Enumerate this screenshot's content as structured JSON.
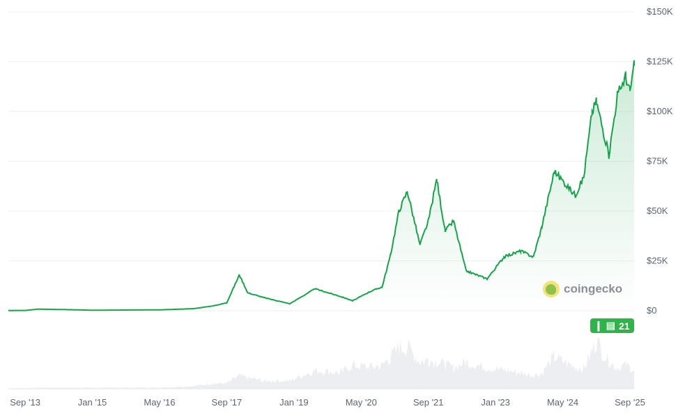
{
  "chart_data": {
    "type": "area",
    "xlabel": "",
    "ylabel": "",
    "y_ticks": [
      "$0",
      "$25K",
      "$50K",
      "$75K",
      "$100K",
      "$125K",
      "$150K"
    ],
    "y_tick_values": [
      0,
      25000,
      50000,
      75000,
      100000,
      125000,
      150000
    ],
    "ylim": [
      0,
      150000
    ],
    "x_ticks": [
      "Sep '13",
      "Jan '15",
      "May '16",
      "Sep '17",
      "Jan '19",
      "May '20",
      "Sep '21",
      "Jan '23",
      "May '24",
      "Sep '25"
    ],
    "x_tick_dates": [
      "2013-09",
      "2015-01",
      "2016-05",
      "2017-09",
      "2019-01",
      "2020-05",
      "2021-09",
      "2023-01",
      "2024-05",
      "2025-09"
    ],
    "xlim": [
      "2013-05",
      "2025-10"
    ],
    "grid": true,
    "line_color": "#16a34a",
    "series": [
      {
        "x": [
          "2013-05",
          "2013-09",
          "2013-12",
          "2014-06",
          "2015-01",
          "2016-01",
          "2016-05",
          "2017-01",
          "2017-06",
          "2017-09",
          "2017-12",
          "2018-02",
          "2018-06",
          "2018-12",
          "2019-06",
          "2019-12",
          "2020-03",
          "2020-07",
          "2020-10",
          "2020-12",
          "2021-02",
          "2021-04",
          "2021-07",
          "2021-09",
          "2021-11",
          "2022-01",
          "2022-03",
          "2022-06",
          "2022-11",
          "2023-03",
          "2023-07",
          "2023-10",
          "2023-12",
          "2024-03",
          "2024-08",
          "2024-10",
          "2024-12",
          "2025-01",
          "2025-04",
          "2025-06",
          "2025-08",
          "2025-09",
          "2025-10"
        ],
        "y": [
          120,
          130,
          800,
          600,
          250,
          400,
          450,
          1000,
          2500,
          4000,
          18000,
          9000,
          6500,
          3500,
          11000,
          7200,
          5000,
          9500,
          12000,
          28000,
          50000,
          60000,
          33000,
          45000,
          66000,
          40000,
          45000,
          20000,
          16000,
          27000,
          30000,
          27000,
          42000,
          70000,
          58000,
          67000,
          100000,
          105000,
          78000,
          108000,
          118000,
          110000,
          123000
        ]
      }
    ],
    "volume_relative": [
      0.01,
      0.01,
      0.02,
      0.02,
      0.02,
      0.02,
      0.02,
      0.05,
      0.1,
      0.1,
      0.25,
      0.2,
      0.15,
      0.15,
      0.35,
      0.3,
      0.45,
      0.4,
      0.45,
      0.6,
      0.75,
      0.8,
      0.5,
      0.55,
      0.5,
      0.45,
      0.4,
      0.5,
      0.4,
      0.35,
      0.3,
      0.25,
      0.3,
      0.6,
      0.4,
      0.4,
      0.7,
      0.9,
      0.5,
      0.4,
      0.45,
      0.4,
      0.35
    ]
  },
  "watermark": "coingecko",
  "news_badge": {
    "count": "21"
  }
}
